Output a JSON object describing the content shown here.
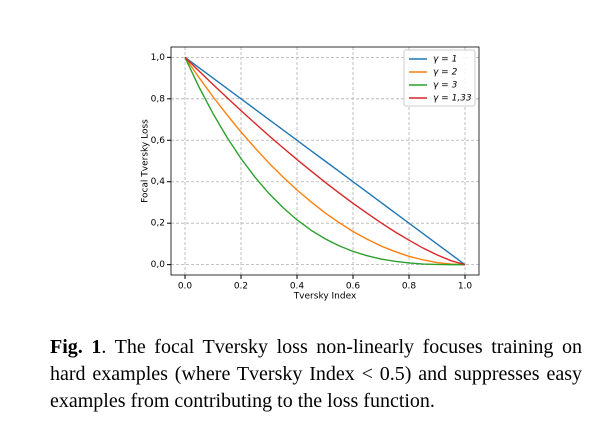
{
  "chart_data": {
    "type": "line",
    "xlabel": "Tversky Index",
    "ylabel": "Focal Tversky Loss",
    "x": [
      0,
      0.05,
      0.1,
      0.15,
      0.2,
      0.25,
      0.3,
      0.35,
      0.4,
      0.45,
      0.5,
      0.55,
      0.6,
      0.65,
      0.7,
      0.75,
      0.8,
      0.85,
      0.9,
      0.95,
      1
    ],
    "series": [
      {
        "name": "γ = 1",
        "color": "#1f77b4",
        "values": [
          1,
          0.95,
          0.9,
          0.85,
          0.8,
          0.75,
          0.7,
          0.65,
          0.6,
          0.55,
          0.5,
          0.45,
          0.4,
          0.35,
          0.3,
          0.25,
          0.2,
          0.15,
          0.1,
          0.05,
          0
        ]
      },
      {
        "name": "γ = 2",
        "color": "#ff7f0e",
        "values": [
          1,
          0.903,
          0.81,
          0.723,
          0.64,
          0.563,
          0.49,
          0.423,
          0.36,
          0.303,
          0.25,
          0.203,
          0.16,
          0.123,
          0.09,
          0.063,
          0.04,
          0.023,
          0.01,
          0.003,
          0
        ]
      },
      {
        "name": "γ = 3",
        "color": "#2ca02c",
        "values": [
          1,
          0.857,
          0.729,
          0.614,
          0.512,
          0.422,
          0.343,
          0.275,
          0.216,
          0.166,
          0.125,
          0.091,
          0.064,
          0.043,
          0.027,
          0.016,
          0.008,
          0.003,
          0.001,
          0,
          0
        ]
      },
      {
        "name": "γ = 1,33",
        "color": "#d62728",
        "values": [
          1,
          0.934,
          0.869,
          0.806,
          0.743,
          0.682,
          0.622,
          0.564,
          0.507,
          0.452,
          0.398,
          0.346,
          0.296,
          0.248,
          0.202,
          0.158,
          0.118,
          0.08,
          0.047,
          0.019,
          0
        ]
      }
    ],
    "xlim": [
      -0.05,
      1.05
    ],
    "ylim": [
      -0.05,
      1.05
    ],
    "xticks": [
      {
        "value": 0,
        "label": "0.0"
      },
      {
        "value": 0.2,
        "label": "0.2"
      },
      {
        "value": 0.4,
        "label": "0.4"
      },
      {
        "value": 0.6,
        "label": "0.6"
      },
      {
        "value": 0.8,
        "label": "0.8"
      },
      {
        "value": 1,
        "label": "1.0"
      }
    ],
    "yticks": [
      {
        "value": 0,
        "label": "0,0"
      },
      {
        "value": 0.2,
        "label": "0,2"
      },
      {
        "value": 0.4,
        "label": "0,4"
      },
      {
        "value": 0.6,
        "label": "0,6"
      },
      {
        "value": 0.8,
        "label": "0,8"
      },
      {
        "value": 1,
        "label": "1,0"
      }
    ],
    "grid": true,
    "legend": "upper-right"
  },
  "caption": {
    "label": "Fig. 1",
    "text": ". The focal Tversky loss non-linearly focuses training on hard examples (where Tversky Index < 0.5) and suppresses easy examples from contributing to the loss function."
  }
}
